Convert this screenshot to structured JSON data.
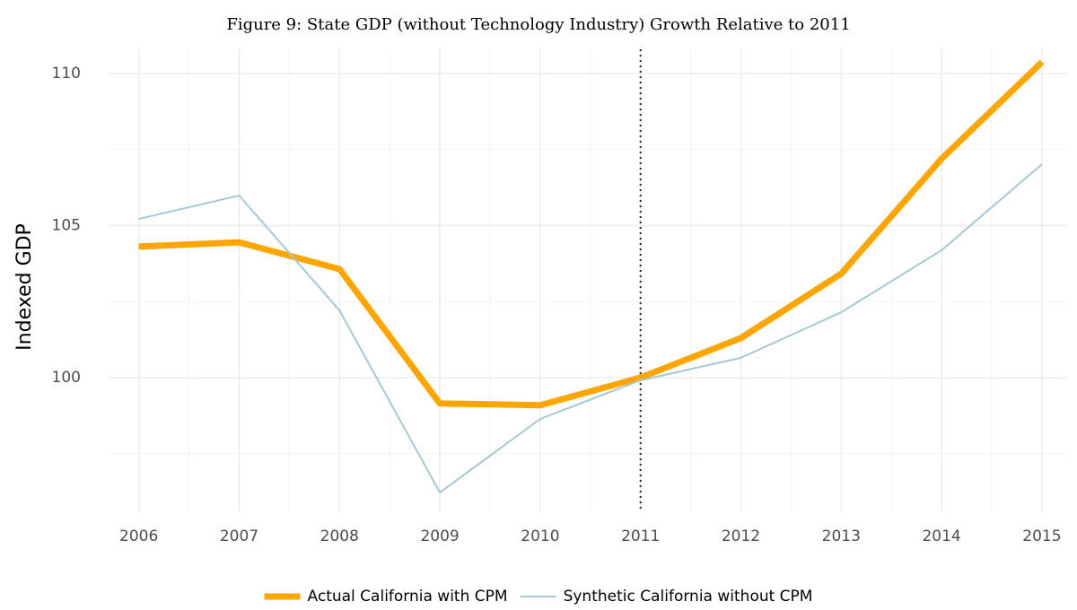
{
  "chart_data": {
    "type": "line",
    "title": "Figure 9: State GDP (without Technology Industry) Growth Relative to 2011",
    "y_label": "Indexed GDP",
    "x": [
      2006,
      2007,
      2008,
      2009,
      2010,
      2011,
      2012,
      2013,
      2014,
      2015
    ],
    "series": [
      {
        "name": "Actual California with CPM",
        "color": "#ffa500",
        "values": [
          104.31,
          104.45,
          103.57,
          99.15,
          99.09,
          100.0,
          101.3,
          103.42,
          107.2,
          110.38
        ]
      },
      {
        "name": "Synthetic California without CPM",
        "color": "#a6c8d4",
        "values": [
          105.22,
          105.99,
          102.21,
          96.22,
          98.64,
          99.91,
          100.65,
          102.15,
          104.19,
          107.02
        ]
      }
    ],
    "xlim": [
      2005.69,
      2015.26
    ],
    "xticks": [
      2006,
      2007,
      2008,
      2009,
      2010,
      2011,
      2012,
      2013,
      2014,
      2015
    ],
    "ylim": [
      95.6,
      110.8
    ],
    "yticks": [
      100,
      105,
      110
    ],
    "vline": 2011,
    "grid": true,
    "legend": "bottom"
  }
}
